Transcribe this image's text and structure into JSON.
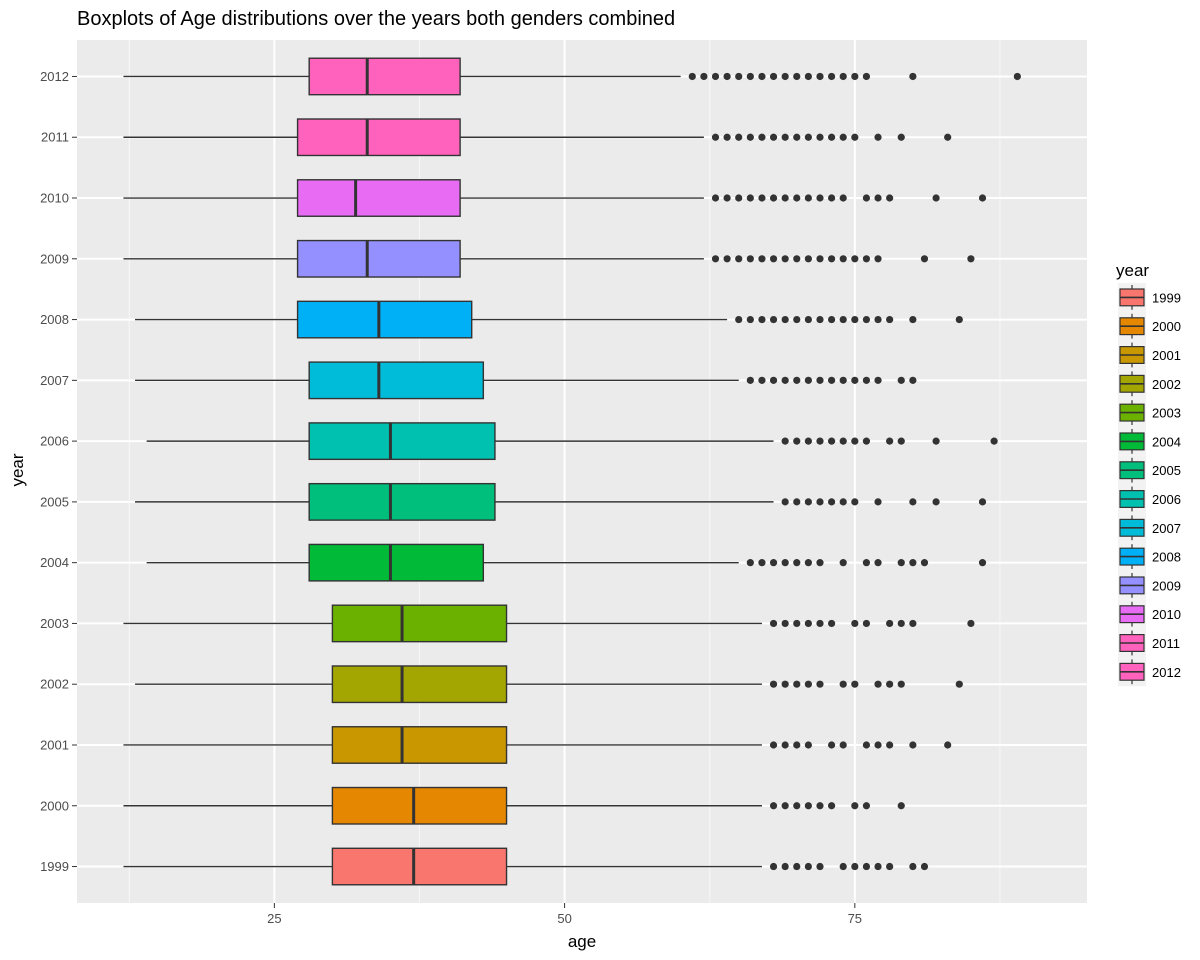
{
  "chart_data": {
    "type": "boxplot",
    "orientation": "horizontal",
    "title": "Boxplots of Age distributions over the years both genders combined",
    "xlabel": "age",
    "ylabel": "year",
    "xlim": [
      8,
      95
    ],
    "x_ticks": [
      25,
      50,
      75
    ],
    "x_minor_ticks": [
      12.5,
      37.5,
      62.5,
      87.5
    ],
    "legend_title": "year",
    "legend_position": "right",
    "categories": [
      "1999",
      "2000",
      "2001",
      "2002",
      "2003",
      "2004",
      "2005",
      "2006",
      "2007",
      "2008",
      "2009",
      "2010",
      "2011",
      "2012"
    ],
    "series": [
      {
        "name": "1999",
        "color": "#F8766D",
        "whisker_low": 12,
        "q1": 30,
        "median": 37,
        "q3": 45,
        "whisker_high": 67,
        "outliers": [
          68,
          69,
          70,
          71,
          72,
          74,
          75,
          76,
          77,
          78,
          80,
          81
        ]
      },
      {
        "name": "2000",
        "color": "#E58700",
        "whisker_low": 12,
        "q1": 30,
        "median": 37,
        "q3": 45,
        "whisker_high": 67,
        "outliers": [
          68,
          69,
          70,
          71,
          72,
          73,
          75,
          76,
          79
        ]
      },
      {
        "name": "2001",
        "color": "#C99800",
        "whisker_low": 12,
        "q1": 30,
        "median": 36,
        "q3": 45,
        "whisker_high": 67,
        "outliers": [
          68,
          69,
          70,
          71,
          73,
          74,
          76,
          77,
          78,
          80,
          83
        ]
      },
      {
        "name": "2002",
        "color": "#A3A500",
        "whisker_low": 13,
        "q1": 30,
        "median": 36,
        "q3": 45,
        "whisker_high": 67,
        "outliers": [
          68,
          69,
          70,
          71,
          72,
          74,
          75,
          77,
          78,
          79,
          84
        ]
      },
      {
        "name": "2003",
        "color": "#6BB100",
        "whisker_low": 12,
        "q1": 30,
        "median": 36,
        "q3": 45,
        "whisker_high": 67,
        "outliers": [
          68,
          69,
          70,
          71,
          72,
          73,
          75,
          76,
          78,
          79,
          80,
          85
        ]
      },
      {
        "name": "2004",
        "color": "#00BA38",
        "whisker_low": 14,
        "q1": 28,
        "median": 35,
        "q3": 43,
        "whisker_high": 65,
        "outliers": [
          66,
          67,
          68,
          69,
          70,
          71,
          72,
          74,
          76,
          77,
          79,
          80,
          81,
          86
        ]
      },
      {
        "name": "2005",
        "color": "#00BF7D",
        "whisker_low": 13,
        "q1": 28,
        "median": 35,
        "q3": 44,
        "whisker_high": 68,
        "outliers": [
          69,
          70,
          71,
          72,
          73,
          74,
          75,
          77,
          80,
          82,
          86
        ]
      },
      {
        "name": "2006",
        "color": "#00C0AF",
        "whisker_low": 14,
        "q1": 28,
        "median": 35,
        "q3": 44,
        "whisker_high": 68,
        "outliers": [
          69,
          70,
          71,
          72,
          73,
          74,
          75,
          76,
          78,
          79,
          82,
          87
        ]
      },
      {
        "name": "2007",
        "color": "#00BCD8",
        "whisker_low": 13,
        "q1": 28,
        "median": 34,
        "q3": 43,
        "whisker_high": 65,
        "outliers": [
          66,
          67,
          68,
          69,
          70,
          71,
          72,
          73,
          74,
          75,
          76,
          77,
          79,
          80
        ]
      },
      {
        "name": "2008",
        "color": "#00B0F6",
        "whisker_low": 13,
        "q1": 27,
        "median": 34,
        "q3": 42,
        "whisker_high": 64,
        "outliers": [
          65,
          66,
          67,
          68,
          69,
          70,
          71,
          72,
          73,
          74,
          75,
          76,
          77,
          78,
          80,
          84
        ]
      },
      {
        "name": "2009",
        "color": "#9590FF",
        "whisker_low": 12,
        "q1": 27,
        "median": 33,
        "q3": 41,
        "whisker_high": 62,
        "outliers": [
          63,
          64,
          65,
          66,
          67,
          68,
          69,
          70,
          71,
          72,
          73,
          74,
          75,
          76,
          77,
          81,
          85
        ]
      },
      {
        "name": "2010",
        "color": "#E76BF3",
        "whisker_low": 12,
        "q1": 27,
        "median": 32,
        "q3": 41,
        "whisker_high": 62,
        "outliers": [
          63,
          64,
          65,
          66,
          67,
          68,
          69,
          70,
          71,
          72,
          73,
          74,
          76,
          77,
          78,
          82,
          86
        ]
      },
      {
        "name": "2011",
        "color": "#FF62BC",
        "whisker_low": 12,
        "q1": 27,
        "median": 33,
        "q3": 41,
        "whisker_high": 62,
        "outliers": [
          63,
          64,
          65,
          66,
          67,
          68,
          69,
          70,
          71,
          72,
          73,
          74,
          75,
          77,
          79,
          83
        ]
      },
      {
        "name": "2012",
        "color": "#FF62BC",
        "whisker_low": 12,
        "q1": 28,
        "median": 33,
        "q3": 41,
        "whisker_high": 60,
        "outliers": [
          61,
          62,
          63,
          64,
          65,
          66,
          67,
          68,
          69,
          70,
          71,
          72,
          73,
          74,
          75,
          76,
          80,
          89
        ]
      }
    ]
  }
}
